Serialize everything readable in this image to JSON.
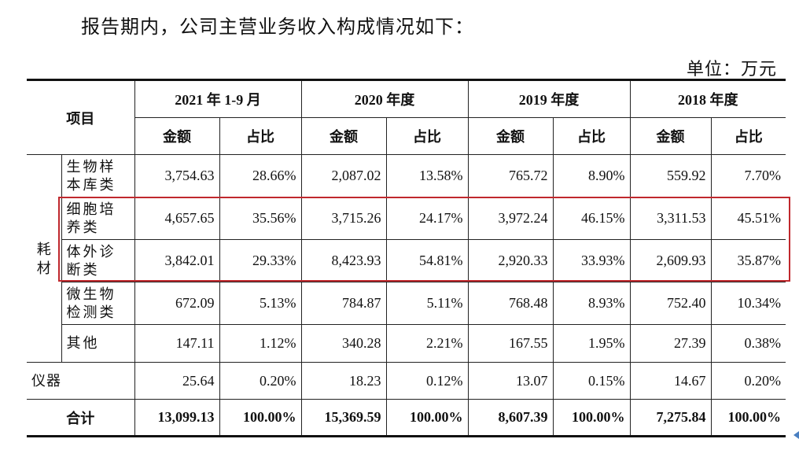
{
  "intro_text": "报告期内，公司主营业务收入构成情况如下：",
  "unit_label": "单位：万元",
  "table": {
    "item_header": "项目",
    "periods": [
      "2021 年 1-9 月",
      "2020 年度",
      "2019 年度",
      "2018 年度"
    ],
    "sub_headers": [
      "金额",
      "占比",
      "金额",
      "占比",
      "金额",
      "占比",
      "金额",
      "占比"
    ],
    "group_consumables": "耗材",
    "rows": [
      {
        "label": "生物样本库类",
        "values": [
          "3,754.63",
          "28.66%",
          "2,087.02",
          "13.58%",
          "765.72",
          "8.90%",
          "559.92",
          "7.70%"
        ]
      },
      {
        "label": "细胞培养类",
        "values": [
          "4,657.65",
          "35.56%",
          "3,715.26",
          "24.17%",
          "3,972.24",
          "46.15%",
          "3,311.53",
          "45.51%"
        ]
      },
      {
        "label": "体外诊断类",
        "values": [
          "3,842.01",
          "29.33%",
          "8,423.93",
          "54.81%",
          "2,920.33",
          "33.93%",
          "2,609.93",
          "35.87%"
        ]
      },
      {
        "label": "微生物检测类",
        "values": [
          "672.09",
          "5.13%",
          "784.87",
          "5.11%",
          "768.48",
          "8.93%",
          "752.40",
          "10.34%"
        ]
      },
      {
        "label": "其他",
        "values": [
          "147.11",
          "1.12%",
          "340.28",
          "2.21%",
          "167.55",
          "1.95%",
          "27.39",
          "0.38%"
        ]
      }
    ],
    "instrument_row": {
      "label": "仪器",
      "values": [
        "25.64",
        "0.20%",
        "18.23",
        "0.12%",
        "13.07",
        "0.15%",
        "14.67",
        "0.20%"
      ]
    },
    "total_row": {
      "label": "合计",
      "values": [
        "13,099.13",
        "100.00%",
        "15,369.59",
        "100.00%",
        "8,607.39",
        "100.00%",
        "7,275.84",
        "100.00%"
      ]
    }
  },
  "highlight_color": "#c0282d"
}
